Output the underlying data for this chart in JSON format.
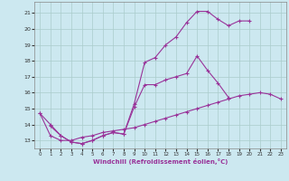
{
  "xlabel": "Windchill (Refroidissement éolien,°C)",
  "background_color": "#cce8f0",
  "line_color": "#993399",
  "xlim": [
    -0.5,
    23.5
  ],
  "ylim": [
    12.5,
    21.7
  ],
  "yticks": [
    13,
    14,
    15,
    16,
    17,
    18,
    19,
    20,
    21
  ],
  "xticks": [
    0,
    1,
    2,
    3,
    4,
    5,
    6,
    7,
    8,
    9,
    10,
    11,
    12,
    13,
    14,
    15,
    16,
    17,
    18,
    19,
    20,
    21,
    22,
    23
  ],
  "line1_x": [
    0,
    1,
    2,
    3,
    4,
    5,
    6,
    7,
    8,
    9,
    10,
    11,
    12,
    13,
    14,
    15,
    16,
    17,
    18,
    19,
    20
  ],
  "line1_y": [
    14.7,
    14.0,
    13.3,
    12.9,
    12.8,
    13.0,
    13.3,
    13.5,
    13.4,
    15.3,
    17.9,
    18.2,
    19.0,
    19.5,
    20.4,
    21.1,
    21.1,
    20.6,
    20.2,
    20.5,
    20.5
  ],
  "line2_x": [
    0,
    1,
    2,
    3,
    4,
    5,
    6,
    7,
    8,
    9,
    10,
    11,
    12,
    13,
    14,
    15,
    16,
    17,
    18,
    19,
    20,
    21,
    22,
    23
  ],
  "line2_y": [
    14.7,
    13.3,
    13.0,
    13.0,
    13.2,
    13.3,
    13.5,
    13.6,
    13.7,
    13.8,
    14.0,
    14.2,
    14.4,
    14.6,
    14.8,
    15.0,
    15.2,
    15.4,
    15.6,
    15.8,
    15.9,
    16.0,
    15.9,
    15.6
  ],
  "line3_x": [
    1,
    2,
    3,
    4,
    5,
    6,
    7,
    8,
    9,
    10,
    11,
    12,
    13,
    14,
    15,
    16,
    17,
    18,
    19,
    20,
    21,
    22,
    23
  ],
  "line3_y": [
    13.9,
    13.3,
    12.9,
    12.8,
    13.0,
    13.3,
    13.5,
    13.4,
    15.1,
    16.5,
    16.5,
    16.8,
    17.0,
    17.2,
    18.3,
    17.4,
    16.6,
    15.7,
    null,
    null,
    null,
    null,
    null
  ]
}
